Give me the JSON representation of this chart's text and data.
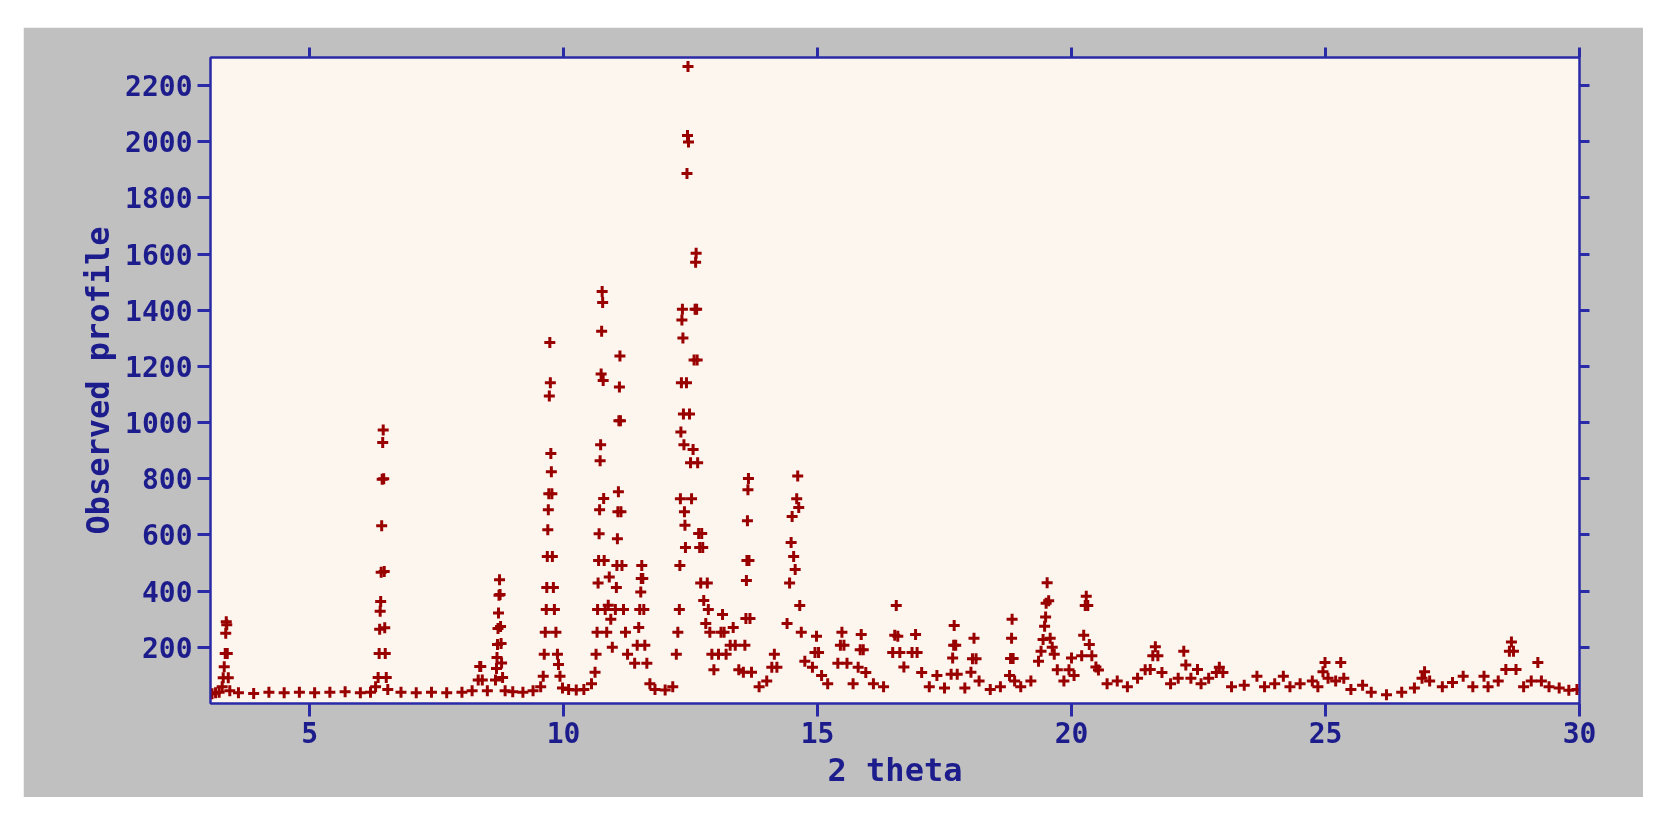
{
  "chart_data": {
    "type": "scatter",
    "xlabel": "2 theta",
    "ylabel": "Observed profile",
    "color": "#990000",
    "marker": "cross",
    "grid": false,
    "xlim": [
      3.05,
      30
    ],
    "ylim": [
      0,
      2300
    ],
    "xticks": [
      5,
      10,
      15,
      20,
      25,
      30
    ],
    "yticks": [
      200,
      400,
      600,
      800,
      1000,
      1200,
      1400,
      1600,
      1800,
      2000,
      2200
    ],
    "x": [
      3.08,
      3.15,
      3.22,
      3.28,
      3.3,
      3.32,
      3.34,
      3.35,
      3.36,
      3.37,
      3.38,
      3.4,
      3.43,
      3.6,
      3.9,
      4.2,
      4.5,
      4.8,
      5.1,
      5.4,
      5.7,
      6.0,
      6.2,
      6.3,
      6.35,
      6.37,
      6.38,
      6.39,
      6.4,
      6.41,
      6.42,
      6.43,
      6.44,
      6.45,
      6.46,
      6.47,
      6.48,
      6.49,
      6.51,
      6.54,
      6.8,
      7.1,
      7.4,
      7.7,
      8.0,
      8.2,
      8.32,
      8.35,
      8.37,
      8.4,
      8.5,
      8.66,
      8.68,
      8.69,
      8.7,
      8.71,
      8.72,
      8.73,
      8.74,
      8.75,
      8.76,
      8.77,
      8.78,
      8.8,
      8.85,
      9.0,
      9.2,
      9.4,
      9.55,
      9.6,
      9.62,
      9.64,
      9.66,
      9.67,
      9.68,
      9.69,
      9.7,
      9.71,
      9.72,
      9.73,
      9.74,
      9.75,
      9.76,
      9.77,
      9.78,
      9.8,
      9.82,
      9.85,
      9.88,
      9.9,
      9.93,
      9.98,
      10.1,
      10.25,
      10.4,
      10.55,
      10.62,
      10.64,
      10.66,
      10.67,
      10.68,
      10.69,
      10.7,
      10.71,
      10.72,
      10.73,
      10.74,
      10.75,
      10.76,
      10.77,
      10.78,
      10.79,
      10.8,
      10.82,
      10.85,
      10.88,
      10.9,
      10.93,
      10.96,
      11.02,
      11.04,
      11.05,
      11.06,
      11.07,
      11.08,
      11.09,
      11.1,
      11.11,
      11.12,
      11.13,
      11.15,
      11.18,
      11.22,
      11.26,
      11.4,
      11.45,
      11.48,
      11.5,
      11.52,
      11.53,
      11.54,
      11.56,
      11.58,
      11.6,
      11.64,
      11.7,
      11.8,
      12.0,
      12.15,
      12.22,
      12.25,
      12.28,
      12.29,
      12.3,
      12.31,
      12.32,
      12.33,
      12.34,
      12.35,
      12.36,
      12.37,
      12.38,
      12.39,
      12.4,
      12.42,
      12.43,
      12.44,
      12.45,
      12.46,
      12.48,
      12.5,
      12.52,
      12.55,
      12.57,
      12.59,
      12.6,
      12.61,
      12.62,
      12.63,
      12.64,
      12.66,
      12.68,
      12.7,
      12.72,
      12.74,
      12.76,
      12.8,
      12.83,
      12.85,
      12.88,
      12.92,
      12.96,
      13.05,
      13.1,
      13.13,
      13.16,
      13.2,
      13.28,
      13.34,
      13.38,
      13.45,
      13.54,
      13.57,
      13.59,
      13.6,
      13.61,
      13.62,
      13.63,
      13.64,
      13.65,
      13.67,
      13.7,
      13.85,
      14.0,
      14.1,
      14.15,
      14.2,
      14.4,
      14.45,
      14.48,
      14.5,
      14.53,
      14.56,
      14.59,
      14.61,
      14.63,
      14.65,
      14.68,
      14.75,
      14.9,
      14.95,
      14.98,
      15.02,
      15.08,
      15.2,
      15.4,
      15.45,
      15.48,
      15.52,
      15.58,
      15.7,
      15.8,
      15.84,
      15.86,
      15.9,
      15.95,
      16.1,
      16.3,
      16.48,
      16.52,
      16.55,
      16.58,
      16.62,
      16.7,
      16.86,
      16.93,
      16.96,
      17.05,
      17.2,
      17.35,
      17.5,
      17.63,
      17.66,
      17.68,
      17.69,
      17.72,
      17.75,
      17.9,
      18.02,
      18.05,
      18.08,
      18.12,
      18.18,
      18.4,
      18.6,
      18.78,
      18.8,
      18.82,
      18.83,
      18.85,
      18.88,
      19.0,
      19.2,
      19.35,
      19.4,
      19.44,
      19.47,
      19.49,
      19.5,
      19.52,
      19.55,
      19.58,
      19.62,
      19.66,
      19.72,
      19.85,
      19.95,
      20.0,
      20.05,
      20.2,
      20.24,
      20.27,
      20.29,
      20.32,
      20.35,
      20.4,
      20.48,
      20.53,
      20.7,
      20.9,
      21.1,
      21.3,
      21.45,
      21.55,
      21.6,
      21.65,
      21.7,
      21.78,
      21.95,
      22.1,
      22.21,
      22.25,
      22.35,
      22.48,
      22.55,
      22.7,
      22.85,
      22.91,
      22.98,
      23.15,
      23.4,
      23.65,
      23.8,
      24.0,
      24.17,
      24.3,
      24.5,
      24.74,
      24.85,
      24.95,
      24.99,
      25.05,
      25.2,
      25.3,
      25.36,
      25.5,
      25.73,
      25.9,
      26.2,
      26.5,
      26.75,
      26.9,
      26.95,
      27.05,
      27.3,
      27.5,
      27.71,
      27.9,
      28.12,
      28.2,
      28.4,
      28.55,
      28.62,
      28.66,
      28.7,
      28.75,
      28.9,
      29.05,
      29.18,
      29.25,
      29.4,
      29.6,
      29.79,
      29.95
    ],
    "values": [
      35,
      38,
      40,
      60,
      92,
      131,
      178,
      250,
      291,
      280,
      178,
      92,
      45,
      38,
      36,
      40,
      38,
      40,
      38,
      40,
      42,
      38,
      40,
      60,
      93,
      178,
      264,
      328,
      363,
      467,
      633,
      798,
      929,
      974,
      800,
      470,
      270,
      178,
      93,
      50,
      40,
      38,
      40,
      38,
      40,
      45,
      84,
      132,
      132,
      84,
      45,
      84,
      125,
      164,
      210,
      267,
      322,
      385,
      441,
      388,
      274,
      214,
      144,
      93,
      45,
      42,
      40,
      45,
      60,
      97,
      175,
      254,
      335,
      413,
      523,
      619,
      690,
      747,
      1095,
      1285,
      1142,
      890,
      825,
      747,
      523,
      413,
      335,
      254,
      175,
      139,
      97,
      55,
      50,
      48,
      50,
      70,
      111,
      175,
      254,
      335,
      429,
      509,
      604,
      690,
      864,
      921,
      1173,
      1325,
      1467,
      1428,
      1150,
      730,
      509,
      335,
      254,
      350,
      450,
      300,
      200,
      335,
      413,
      491,
      587,
      683,
      754,
      1007,
      1127,
      1237,
      1007,
      683,
      491,
      335,
      254,
      175,
      143,
      207,
      271,
      335,
      397,
      445,
      491,
      445,
      335,
      207,
      143,
      70,
      50,
      48,
      60,
      175,
      254,
      335,
      491,
      729,
      967,
      1142,
      1365,
      1404,
      1301,
      1031,
      921,
      683,
      635,
      555,
      1142,
      1887,
      2022,
      2268,
      1999,
      1031,
      857,
      729,
      904,
      1223,
      1404,
      1571,
      1603,
      1404,
      1223,
      857,
      605,
      555,
      429,
      605,
      555,
      367,
      285,
      429,
      335,
      254,
      175,
      120,
      175,
      254,
      317,
      254,
      175,
      207,
      271,
      207,
      120,
      111,
      207,
      303,
      438,
      509,
      651,
      761,
      801,
      509,
      303,
      111,
      60,
      80,
      129,
      175,
      129,
      285,
      429,
      573,
      666,
      523,
      477,
      729,
      810,
      698,
      349,
      254,
      150,
      129,
      182,
      239,
      182,
      100,
      70,
      143,
      207,
      254,
      207,
      143,
      70,
      129,
      191,
      246,
      191,
      110,
      70,
      60,
      182,
      243,
      349,
      239,
      182,
      130,
      182,
      246,
      182,
      110,
      60,
      100,
      55,
      104,
      162,
      207,
      278,
      207,
      104,
      55,
      111,
      159,
      232,
      159,
      80,
      50,
      60,
      100,
      160,
      232,
      300,
      160,
      80,
      60,
      80,
      150,
      186,
      228,
      275,
      308,
      357,
      430,
      366,
      232,
      200,
      175,
      120,
      80,
      120,
      162,
      100,
      170,
      243,
      349,
      382,
      349,
      210,
      170,
      130,
      119,
      70,
      80,
      60,
      90,
      120,
      121,
      170,
      202,
      170,
      110,
      70,
      90,
      186,
      137,
      90,
      121,
      70,
      90,
      110,
      129,
      110,
      60,
      65,
      97,
      60,
      70,
      97,
      60,
      70,
      80,
      60,
      113,
      146,
      90,
      80,
      146,
      90,
      50,
      65,
      40,
      31,
      40,
      55,
      90,
      113,
      80,
      60,
      75,
      97,
      60,
      97,
      60,
      80,
      121,
      186,
      219,
      186,
      121,
      60,
      80,
      146,
      80,
      60,
      55,
      47,
      50
    ]
  }
}
